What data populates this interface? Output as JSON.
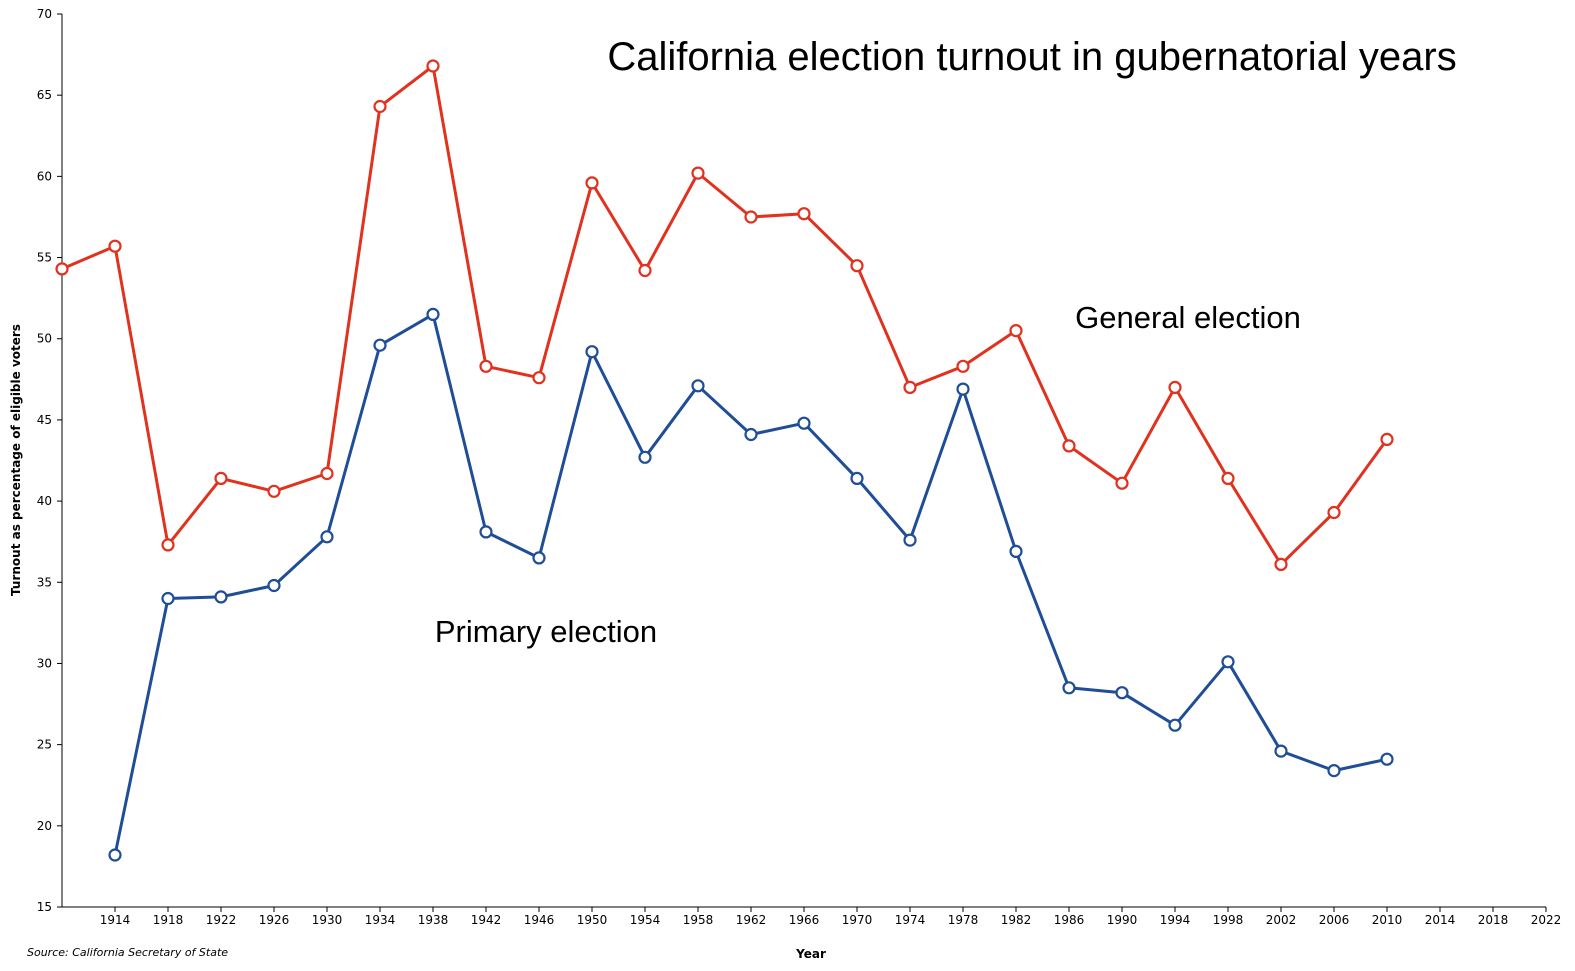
{
  "chart_data": {
    "type": "line",
    "title": "California election turnout in gubernatorial years",
    "xlabel": "Year",
    "ylabel": "Turnout as percentage of eligible voters",
    "source": "Source: California Secretary of State",
    "xlim": [
      1910,
      2022
    ],
    "ylim": [
      15,
      70
    ],
    "x_ticks": [
      1914,
      1918,
      1922,
      1926,
      1930,
      1934,
      1938,
      1942,
      1946,
      1950,
      1954,
      1958,
      1962,
      1966,
      1970,
      1974,
      1978,
      1982,
      1986,
      1990,
      1994,
      1998,
      2002,
      2006,
      2010,
      2014,
      2018,
      2022
    ],
    "y_ticks": [
      15,
      20,
      25,
      30,
      35,
      40,
      45,
      50,
      55,
      60,
      65,
      70
    ],
    "grid": false,
    "series": [
      {
        "name": "General election",
        "color": "#e0321e",
        "points": [
          [
            1910,
            54.3
          ],
          [
            1914,
            55.7
          ],
          [
            1918,
            37.3
          ],
          [
            1922,
            41.4
          ],
          [
            1926,
            40.6
          ],
          [
            1930,
            41.7
          ],
          [
            1934,
            64.3
          ],
          [
            1938,
            66.8
          ],
          [
            1942,
            48.3
          ],
          [
            1946,
            47.6
          ],
          [
            1950,
            59.6
          ],
          [
            1954,
            54.2
          ],
          [
            1958,
            60.2
          ],
          [
            1962,
            57.5
          ],
          [
            1966,
            57.7
          ],
          [
            1970,
            54.5
          ],
          [
            1974,
            47.0
          ],
          [
            1978,
            48.3
          ],
          [
            1982,
            50.5
          ],
          [
            1986,
            43.4
          ],
          [
            1990,
            41.1
          ],
          [
            1994,
            47.0
          ],
          [
            1998,
            41.4
          ],
          [
            2002,
            36.1
          ],
          [
            2006,
            39.3
          ],
          [
            2010,
            43.8
          ]
        ]
      },
      {
        "name": "Primary election",
        "color": "#1f4e97",
        "points": [
          [
            1914,
            18.2
          ],
          [
            1918,
            34.0
          ],
          [
            1922,
            34.1
          ],
          [
            1926,
            34.8
          ],
          [
            1930,
            37.8
          ],
          [
            1934,
            49.6
          ],
          [
            1938,
            51.5
          ],
          [
            1942,
            38.1
          ],
          [
            1946,
            36.5
          ],
          [
            1950,
            49.2
          ],
          [
            1954,
            42.7
          ],
          [
            1958,
            47.1
          ],
          [
            1962,
            44.1
          ],
          [
            1966,
            44.8
          ],
          [
            1970,
            41.4
          ],
          [
            1974,
            37.6
          ],
          [
            1978,
            46.9
          ],
          [
            1982,
            36.9
          ],
          [
            1986,
            28.5
          ],
          [
            1990,
            28.2
          ],
          [
            1994,
            26.2
          ],
          [
            1998,
            30.1
          ],
          [
            2002,
            24.6
          ],
          [
            2006,
            23.4
          ],
          [
            2010,
            24.1
          ]
        ]
      }
    ]
  }
}
